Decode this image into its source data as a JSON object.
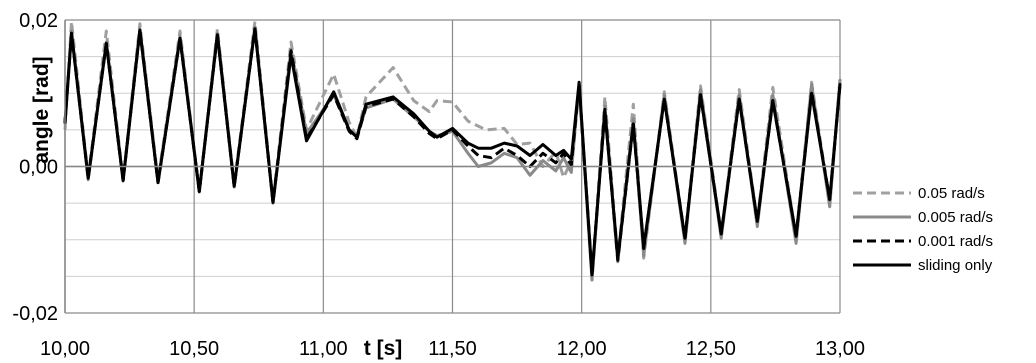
{
  "chart_data": {
    "type": "line",
    "title": "",
    "xlabel": "t [s]",
    "ylabel": "angle [rad]",
    "xlim": [
      10.0,
      13.0
    ],
    "ylim": [
      -0.02,
      0.02
    ],
    "x_ticks": [
      10.0,
      10.5,
      11.0,
      11.5,
      12.0,
      12.5,
      13.0
    ],
    "x_tick_labels": [
      "10,00",
      "10,50",
      "11,00",
      "11,50",
      "12,00",
      "12,50",
      "13,00"
    ],
    "y_ticks": [
      -0.02,
      0.0,
      0.02
    ],
    "y_tick_labels": [
      "-0,02",
      "0,00",
      "0,02"
    ],
    "grid": true,
    "legend_position": "right",
    "series": [
      {
        "name": "0.05 rad/s",
        "color": "#a0a0a0",
        "style": "dashed",
        "x": [
          10.0,
          10.025,
          10.09,
          10.16,
          10.225,
          10.29,
          10.36,
          10.445,
          10.52,
          10.59,
          10.655,
          10.735,
          10.805,
          10.875,
          10.935,
          11.04,
          11.1,
          11.13,
          11.165,
          11.27,
          11.35,
          11.41,
          11.44,
          11.5,
          11.56,
          11.63,
          11.7,
          11.75,
          11.8,
          11.85,
          11.9,
          11.93,
          11.96,
          11.99,
          12.04,
          12.09,
          12.14,
          12.2,
          12.24,
          12.32,
          12.4,
          12.46,
          12.54,
          12.61,
          12.68,
          12.74,
          12.83,
          12.89,
          12.96,
          13.0
        ],
        "y": [
          0.005,
          0.0198,
          -0.0015,
          0.0185,
          -0.0018,
          0.0195,
          -0.0018,
          0.0185,
          -0.0035,
          0.0188,
          -0.0025,
          0.0198,
          -0.0048,
          0.017,
          0.005,
          0.0126,
          0.006,
          0.004,
          0.0095,
          0.0135,
          0.009,
          0.0075,
          0.009,
          0.0088,
          0.0062,
          0.005,
          0.0052,
          0.003,
          0.0032,
          0.0,
          0.002,
          -0.0015,
          0.0008,
          0.0112,
          -0.0155,
          0.0095,
          -0.0125,
          0.0085,
          -0.0125,
          0.0102,
          -0.01,
          0.011,
          -0.0092,
          0.0105,
          -0.0075,
          0.0108,
          -0.0096,
          0.0115,
          -0.005,
          0.012
        ]
      },
      {
        "name": "0.005 rad/s",
        "color": "#8a8a8a",
        "style": "solid",
        "x": [
          10.0,
          10.025,
          10.09,
          10.16,
          10.225,
          10.29,
          10.36,
          10.445,
          10.52,
          10.59,
          10.655,
          10.735,
          10.805,
          10.875,
          10.935,
          11.04,
          11.1,
          11.13,
          11.165,
          11.27,
          11.35,
          11.41,
          11.44,
          11.5,
          11.56,
          11.6,
          11.65,
          11.7,
          11.75,
          11.8,
          11.85,
          11.9,
          11.93,
          11.96,
          11.99,
          12.04,
          12.09,
          12.14,
          12.2,
          12.24,
          12.32,
          12.4,
          12.46,
          12.54,
          12.61,
          12.68,
          12.74,
          12.83,
          12.89,
          12.96,
          13.0
        ],
        "y": [
          0.006,
          0.0185,
          -0.0018,
          0.017,
          -0.002,
          0.0188,
          -0.0022,
          0.0178,
          -0.0035,
          0.0182,
          -0.0028,
          0.019,
          -0.005,
          0.016,
          0.0045,
          0.0098,
          0.005,
          0.004,
          0.008,
          0.0092,
          0.0068,
          0.0048,
          0.0042,
          0.0048,
          0.0018,
          0.0,
          0.0005,
          0.0018,
          0.0012,
          -0.0012,
          0.0008,
          -0.0006,
          0.0012,
          -0.0008,
          0.0112,
          -0.0155,
          0.0082,
          -0.013,
          0.0065,
          -0.0122,
          0.0098,
          -0.0105,
          0.0105,
          -0.0098,
          0.0098,
          -0.0082,
          0.0098,
          -0.0105,
          0.0112,
          -0.0055,
          0.0118
        ]
      },
      {
        "name": "0.001 rad/s",
        "color": "#000000",
        "style": "dashed",
        "x": [
          10.0,
          10.025,
          10.09,
          10.16,
          10.225,
          10.29,
          10.36,
          10.445,
          10.52,
          10.59,
          10.655,
          10.735,
          10.805,
          10.875,
          10.935,
          11.04,
          11.1,
          11.13,
          11.165,
          11.27,
          11.35,
          11.41,
          11.44,
          11.5,
          11.56,
          11.6,
          11.65,
          11.7,
          11.75,
          11.8,
          11.85,
          11.9,
          11.93,
          11.96,
          11.99,
          12.04,
          12.09,
          12.14,
          12.2,
          12.24,
          12.32,
          12.4,
          12.46,
          12.54,
          12.61,
          12.68,
          12.74,
          12.83,
          12.89,
          12.96,
          13.0
        ],
        "y": [
          0.006,
          0.0182,
          -0.0016,
          0.0168,
          -0.0019,
          0.0186,
          -0.0022,
          0.0175,
          -0.0034,
          0.018,
          -0.0027,
          0.0188,
          -0.0049,
          0.0158,
          0.0038,
          0.0098,
          0.0048,
          0.0038,
          0.0082,
          0.0092,
          0.0068,
          0.0045,
          0.0038,
          0.005,
          0.0028,
          0.0015,
          0.0012,
          0.0025,
          0.0015,
          0.0,
          0.0018,
          0.0005,
          0.0018,
          0.0002,
          0.0112,
          -0.0148,
          0.0078,
          -0.0128,
          0.0058,
          -0.0112,
          0.0092,
          -0.0098,
          0.0098,
          -0.0092,
          0.0092,
          -0.0075,
          0.009,
          -0.0095,
          0.0102,
          -0.0045,
          0.0112
        ]
      },
      {
        "name": "sliding only",
        "color": "#000000",
        "style": "solid",
        "x": [
          10.0,
          10.025,
          10.09,
          10.16,
          10.225,
          10.29,
          10.36,
          10.445,
          10.52,
          10.59,
          10.655,
          10.735,
          10.805,
          10.875,
          10.935,
          11.04,
          11.1,
          11.13,
          11.165,
          11.27,
          11.35,
          11.41,
          11.44,
          11.5,
          11.56,
          11.6,
          11.65,
          11.7,
          11.75,
          11.8,
          11.85,
          11.9,
          11.93,
          11.96,
          11.99,
          12.04,
          12.09,
          12.14,
          12.2,
          12.24,
          12.32,
          12.4,
          12.46,
          12.54,
          12.61,
          12.68,
          12.74,
          12.83,
          12.89,
          12.96,
          13.0
        ],
        "y": [
          0.006,
          0.0182,
          -0.0016,
          0.0168,
          -0.0019,
          0.0186,
          -0.0022,
          0.0175,
          -0.0034,
          0.018,
          -0.0027,
          0.0188,
          -0.0049,
          0.0152,
          0.0035,
          0.0102,
          0.005,
          0.004,
          0.0085,
          0.0095,
          0.0072,
          0.0048,
          0.004,
          0.0052,
          0.0032,
          0.0025,
          0.0025,
          0.0032,
          0.0028,
          0.0015,
          0.003,
          0.0015,
          0.0022,
          0.001,
          0.0115,
          -0.0148,
          0.0075,
          -0.0125,
          0.0058,
          -0.011,
          0.0092,
          -0.0098,
          0.0098,
          -0.0092,
          0.0092,
          -0.0075,
          0.009,
          -0.0095,
          0.01,
          -0.0045,
          0.0112
        ]
      }
    ]
  }
}
